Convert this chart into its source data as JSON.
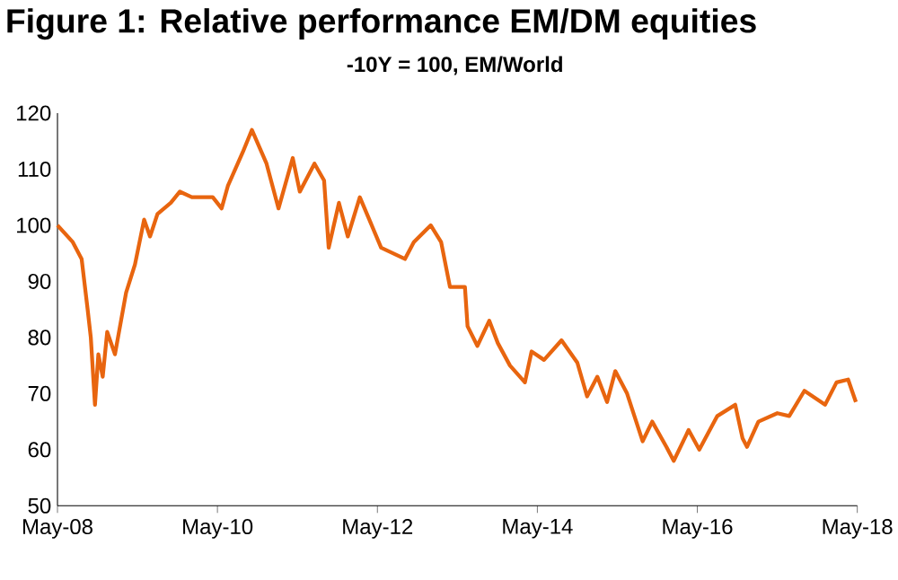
{
  "chart_data": {
    "type": "line",
    "title": "Figure 1: Relative performance EM/DM equities",
    "subtitle": "-10Y = 100, EM/World",
    "x": [
      "2008-05-01",
      "2008-07-10",
      "2008-08-20",
      "2008-09-17",
      "2008-10-01",
      "2008-10-20",
      "2008-11-05",
      "2008-11-25",
      "2008-12-15",
      "2009-01-20",
      "2009-03-10",
      "2009-04-20",
      "2009-06-01",
      "2009-06-28",
      "2009-08-01",
      "2009-10-01",
      "2009-11-12",
      "2010-01-06",
      "2010-04-10",
      "2010-05-20",
      "2010-06-18",
      "2010-08-25",
      "2010-10-06",
      "2010-12-12",
      "2011-02-06",
      "2011-04-10",
      "2011-05-12",
      "2011-07-18",
      "2011-09-01",
      "2011-09-22",
      "2011-11-08",
      "2011-12-18",
      "2012-02-12",
      "2012-03-25",
      "2012-05-18",
      "2012-09-05",
      "2012-10-15",
      "2013-01-01",
      "2013-02-18",
      "2013-03-28",
      "2013-06-05",
      "2013-06-17",
      "2013-08-01",
      "2013-09-25",
      "2013-11-03",
      "2013-12-28",
      "2014-03-05",
      "2014-04-05",
      "2014-06-01",
      "2014-08-20",
      "2014-11-01",
      "2014-12-15",
      "2015-02-01",
      "2015-03-15",
      "2015-04-22",
      "2015-06-15",
      "2015-08-25",
      "2015-10-08",
      "2015-12-12",
      "2016-01-15",
      "2016-03-22",
      "2016-05-10",
      "2016-08-01",
      "2016-10-22",
      "2016-11-25",
      "2016-12-15",
      "2017-02-06",
      "2017-05-01",
      "2017-06-25",
      "2017-09-03",
      "2017-12-06",
      "2018-01-28",
      "2018-03-20",
      "2018-04-25"
    ],
    "series": [
      {
        "color": "#e8650f",
        "values": [
          100,
          97,
          94,
          85,
          80,
          68,
          77,
          73,
          81,
          77,
          88,
          93,
          101,
          98,
          102,
          104,
          106,
          105,
          105,
          103,
          107,
          113,
          117,
          111,
          103,
          112,
          106,
          111,
          108,
          96,
          104,
          98,
          105,
          101,
          96,
          94,
          97,
          100,
          97,
          89,
          89,
          82,
          78.5,
          83,
          79,
          75,
          72,
          77.5,
          76,
          79.5,
          75.5,
          69.5,
          73,
          68.5,
          74,
          70,
          61.5,
          65,
          60.5,
          58,
          63.5,
          60,
          66,
          68,
          62,
          60.5,
          65,
          66.5,
          66,
          70.5,
          68,
          72,
          72.5,
          68.5
        ]
      }
    ],
    "xlim": [
      "2008-05-01",
      "2018-05-01"
    ],
    "xticks": [
      {
        "value": "2008-05-01",
        "label": "May-08"
      },
      {
        "value": "2010-05-01",
        "label": "May-10"
      },
      {
        "value": "2012-05-01",
        "label": "May-12"
      },
      {
        "value": "2014-05-01",
        "label": "May-14"
      },
      {
        "value": "2016-05-01",
        "label": "May-16"
      },
      {
        "value": "2018-05-01",
        "label": "May-18"
      }
    ],
    "ylim": [
      50,
      120
    ],
    "yticks": [
      50,
      60,
      70,
      80,
      90,
      100,
      110,
      120
    ],
    "grid": false,
    "marker": "none",
    "line_style": "solid"
  }
}
